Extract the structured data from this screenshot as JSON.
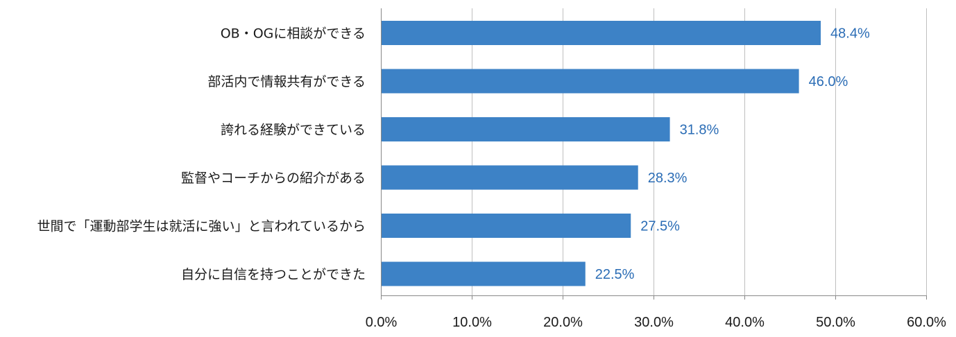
{
  "chart_data": {
    "type": "bar",
    "orientation": "horizontal",
    "categories": [
      "OB・OGに相談ができる",
      "部活内で情報共有ができる",
      "誇れる経験ができている",
      "監督やコーチからの紹介がある",
      "世間で「運動部学生は就活に強い」と言われているから",
      "自分に自信を持つことができた"
    ],
    "values": [
      48.4,
      46.0,
      31.8,
      28.3,
      27.5,
      22.5
    ],
    "data_labels": [
      "48.4%",
      "46.0%",
      "31.8%",
      "28.3%",
      "27.5%",
      "22.5%"
    ],
    "xlim": [
      0,
      60
    ],
    "x_ticks": [
      0,
      10,
      20,
      30,
      40,
      50,
      60
    ],
    "x_tick_labels": [
      "0.0%",
      "10.0%",
      "20.0%",
      "30.0%",
      "40.0%",
      "50.0%",
      "60.0%"
    ],
    "grid": true,
    "legend": "none",
    "title": "",
    "xlabel": "",
    "ylabel": "",
    "colors": {
      "bar": "#3d82c6",
      "data_label": "#2a6cb5",
      "grid": "#bfbfbf",
      "axis": "#888888"
    }
  }
}
